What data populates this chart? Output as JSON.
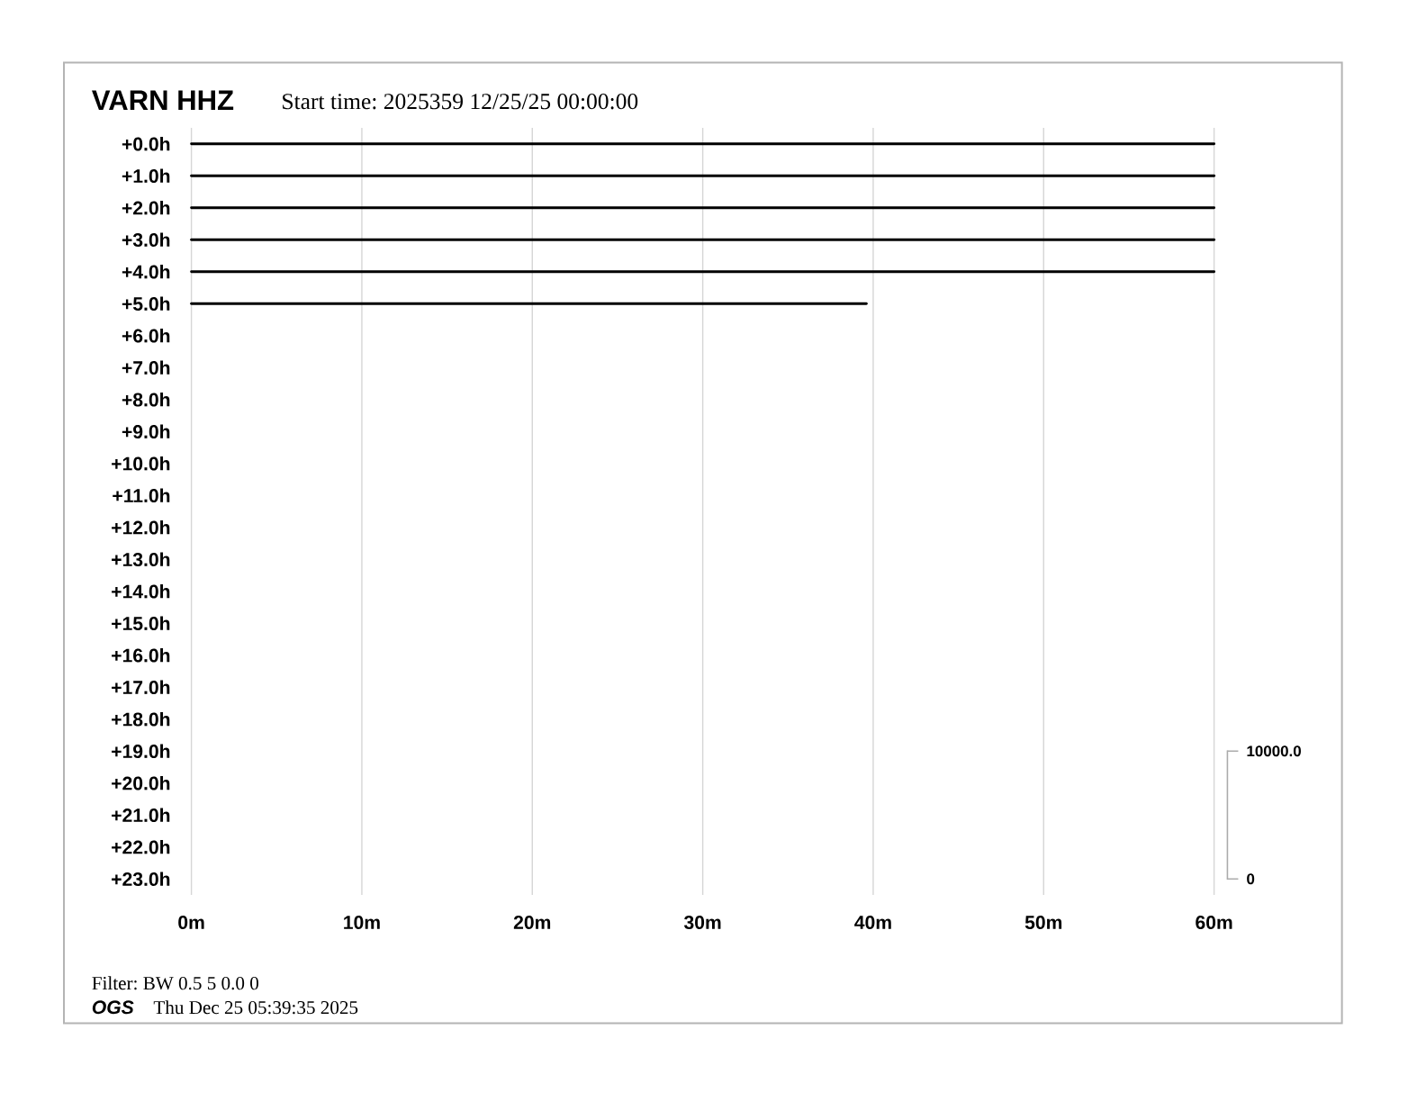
{
  "chart_data": {
    "type": "line",
    "title": "VARN HHZ",
    "subtitle": "Start time: 2025359 12/25/25 00:00:00",
    "annotations": [
      "Filter: BW 0.5 5 0.0 0",
      "OGS",
      "Thu Dec 25 05:39:35 2025"
    ],
    "xlim": [
      0,
      60
    ],
    "xticks": [
      {
        "value": 0,
        "label": "0m"
      },
      {
        "value": 10,
        "label": "10m"
      },
      {
        "value": 20,
        "label": "20m"
      },
      {
        "value": 30,
        "label": "30m"
      },
      {
        "value": 40,
        "label": "40m"
      },
      {
        "value": 50,
        "label": "50m"
      },
      {
        "value": 60,
        "label": "60m"
      }
    ],
    "ylim": [
      23.5,
      -0.5
    ],
    "yticks": [
      {
        "value": 0,
        "label": "+0.0h"
      },
      {
        "value": 1,
        "label": "+1.0h"
      },
      {
        "value": 2,
        "label": "+2.0h"
      },
      {
        "value": 3,
        "label": "+3.0h"
      },
      {
        "value": 4,
        "label": "+4.0h"
      },
      {
        "value": 5,
        "label": "+5.0h"
      },
      {
        "value": 6,
        "label": "+6.0h"
      },
      {
        "value": 7,
        "label": "+7.0h"
      },
      {
        "value": 8,
        "label": "+8.0h"
      },
      {
        "value": 9,
        "label": "+9.0h"
      },
      {
        "value": 10,
        "label": "+10.0h"
      },
      {
        "value": 11,
        "label": "+11.0h"
      },
      {
        "value": 12,
        "label": "+12.0h"
      },
      {
        "value": 13,
        "label": "+13.0h"
      },
      {
        "value": 14,
        "label": "+14.0h"
      },
      {
        "value": 15,
        "label": "+15.0h"
      },
      {
        "value": 16,
        "label": "+16.0h"
      },
      {
        "value": 17,
        "label": "+17.0h"
      },
      {
        "value": 18,
        "label": "+18.0h"
      },
      {
        "value": 19,
        "label": "+19.0h"
      },
      {
        "value": 20,
        "label": "+20.0h"
      },
      {
        "value": 21,
        "label": "+21.0h"
      },
      {
        "value": 22,
        "label": "+22.0h"
      },
      {
        "value": 23,
        "label": "+23.0h"
      }
    ],
    "y2lim": [
      -1250,
      58750
    ],
    "y2ticks": [
      {
        "value": 0,
        "label": "0"
      },
      {
        "value": 10000,
        "label": "10000.0"
      }
    ],
    "grid": "x",
    "marker": "none",
    "line_style": "solid",
    "series": [
      {
        "color": "#000000",
        "x": [
          0,
          60
        ],
        "values": [
          0,
          0
        ]
      },
      {
        "color": "#000000",
        "x": [
          0,
          60
        ],
        "values": [
          1,
          1
        ]
      },
      {
        "color": "#000000",
        "x": [
          0,
          60
        ],
        "values": [
          2,
          2
        ]
      },
      {
        "color": "#000000",
        "x": [
          0,
          60
        ],
        "values": [
          3,
          3
        ]
      },
      {
        "color": "#000000",
        "x": [
          0,
          60
        ],
        "values": [
          4,
          4
        ]
      },
      {
        "color": "#000000",
        "x": [
          0,
          39.6
        ],
        "values": [
          5,
          5
        ]
      }
    ]
  }
}
